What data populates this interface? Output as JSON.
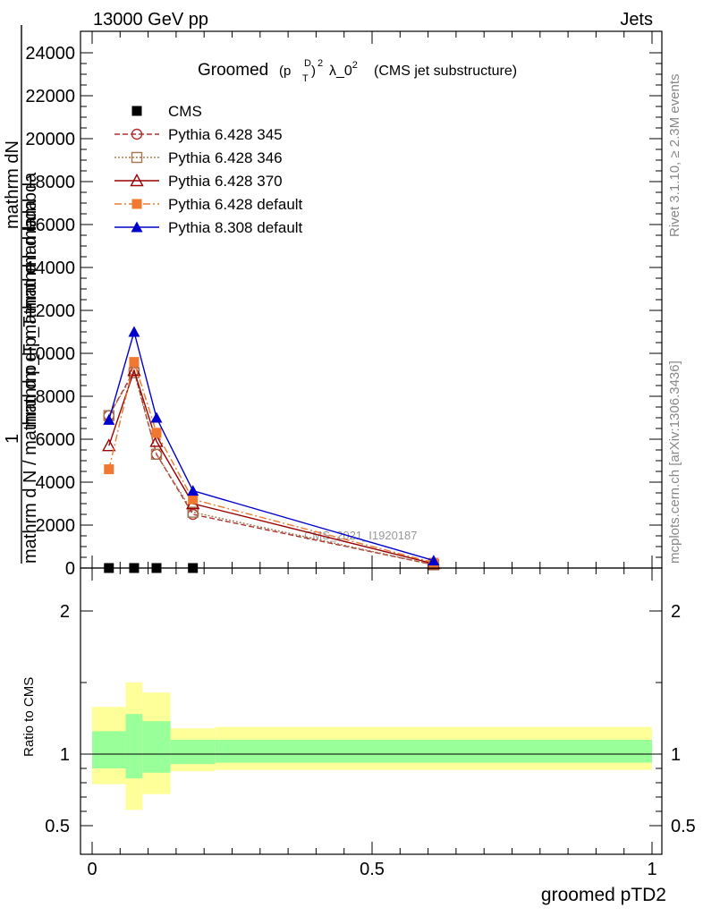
{
  "header": {
    "left": "13000 GeV pp",
    "right": "Jets",
    "side_top": "Rivet 3.1.10, ≥ 2.3M events",
    "side_bottom": "mcplots.cern.ch [arXiv:1306.3436]"
  },
  "chart_data": [
    {
      "type": "line",
      "title": "Groomed(p_T^D)^2 λ_0^2 (CMS jet substructure)",
      "title_parts": {
        "main": "Groomed",
        "close": "λ_0",
        "tail": "(CMS jet substructure)",
        "sup2": "2",
        "supD": "D",
        "subT": "T"
      },
      "ylabel_lines": [
        "mathrm dN",
        "mathrm d p_T mathrm d lambda",
        "1",
        "mathrm d N / mathrm d p_T mathrm d lambda"
      ],
      "watermark": "CMS_2021_I1920187",
      "ylim": [
        0,
        25000
      ],
      "xlim": [
        -0.02,
        1.0
      ],
      "yticks": [
        0,
        2000,
        4000,
        6000,
        8000,
        10000,
        12000,
        14000,
        16000,
        18000,
        20000,
        22000,
        24000
      ],
      "ytick_labels": [
        "0",
        "2000",
        "4000",
        "6000",
        "8000",
        "10000",
        "12000",
        "14000",
        "16000",
        "18000",
        "20000",
        "22000",
        "24000"
      ],
      "legend_position": "top-left",
      "series": [
        {
          "name": "CMS",
          "color": "#000000",
          "marker": "square-filled",
          "line": "none",
          "x": [
            0.03,
            0.075,
            0.115,
            0.18
          ],
          "y": [
            0,
            0,
            0,
            0
          ]
        },
        {
          "name": "Pythia 6.428 345",
          "color": "#b03030",
          "marker": "circle-open",
          "line": "dashed",
          "x": [
            0.03,
            0.075,
            0.115,
            0.18,
            0.61
          ],
          "y": [
            7100,
            9200,
            5300,
            2500,
            150
          ]
        },
        {
          "name": "Pythia 6.428 346",
          "color": "#a07850",
          "marker": "square-open",
          "line": "dotted",
          "x": [
            0.03,
            0.075,
            0.115,
            0.18,
            0.61
          ],
          "y": [
            7100,
            9100,
            5300,
            2600,
            150
          ]
        },
        {
          "name": "Pythia 6.428 370",
          "color": "#990000",
          "marker": "triangle-open",
          "line": "solid",
          "x": [
            0.03,
            0.075,
            0.115,
            0.18,
            0.61
          ],
          "y": [
            5700,
            9200,
            5900,
            3000,
            200
          ]
        },
        {
          "name": "Pythia 6.428 default",
          "color": "#f07830",
          "marker": "square-filled",
          "line": "dashdot",
          "x": [
            0.03,
            0.075,
            0.115,
            0.18,
            0.61
          ],
          "y": [
            4600,
            9600,
            6300,
            3200,
            250
          ]
        },
        {
          "name": "Pythia 8.308 default",
          "color": "#0000cc",
          "marker": "triangle-filled",
          "line": "solid",
          "x": [
            0.03,
            0.075,
            0.115,
            0.18,
            0.61
          ],
          "y": [
            6900,
            11000,
            7000,
            3600,
            350
          ]
        }
      ]
    },
    {
      "type": "area",
      "ylabel": "Ratio to CMS",
      "xlabel": "groomed pTD2",
      "ylim": [
        0.3,
        2.3
      ],
      "xlim": [
        -0.02,
        1.0
      ],
      "yticks": [
        0.5,
        1,
        2
      ],
      "ytick_labels": [
        "0.5",
        "1",
        "2"
      ],
      "xticks": [
        0,
        0.5,
        1
      ],
      "xtick_labels": [
        "0",
        "0.5",
        "1"
      ],
      "reference_line": 1,
      "bands": [
        {
          "x0": 0.0,
          "x1": 0.06,
          "yellow": [
            0.79,
            1.33
          ],
          "green": [
            0.9,
            1.16
          ]
        },
        {
          "x0": 0.06,
          "x1": 0.09,
          "yellow": [
            0.61,
            1.5
          ],
          "green": [
            0.83,
            1.28
          ]
        },
        {
          "x0": 0.09,
          "x1": 0.14,
          "yellow": [
            0.72,
            1.43
          ],
          "green": [
            0.87,
            1.23
          ]
        },
        {
          "x0": 0.14,
          "x1": 0.22,
          "yellow": [
            0.88,
            1.18
          ],
          "green": [
            0.93,
            1.1
          ]
        },
        {
          "x0": 0.22,
          "x1": 1.0,
          "yellow": [
            0.89,
            1.19
          ],
          "green": [
            0.94,
            1.1
          ]
        }
      ],
      "band_colors": {
        "yellow": "#ffff99",
        "green": "#99ff99"
      }
    }
  ]
}
